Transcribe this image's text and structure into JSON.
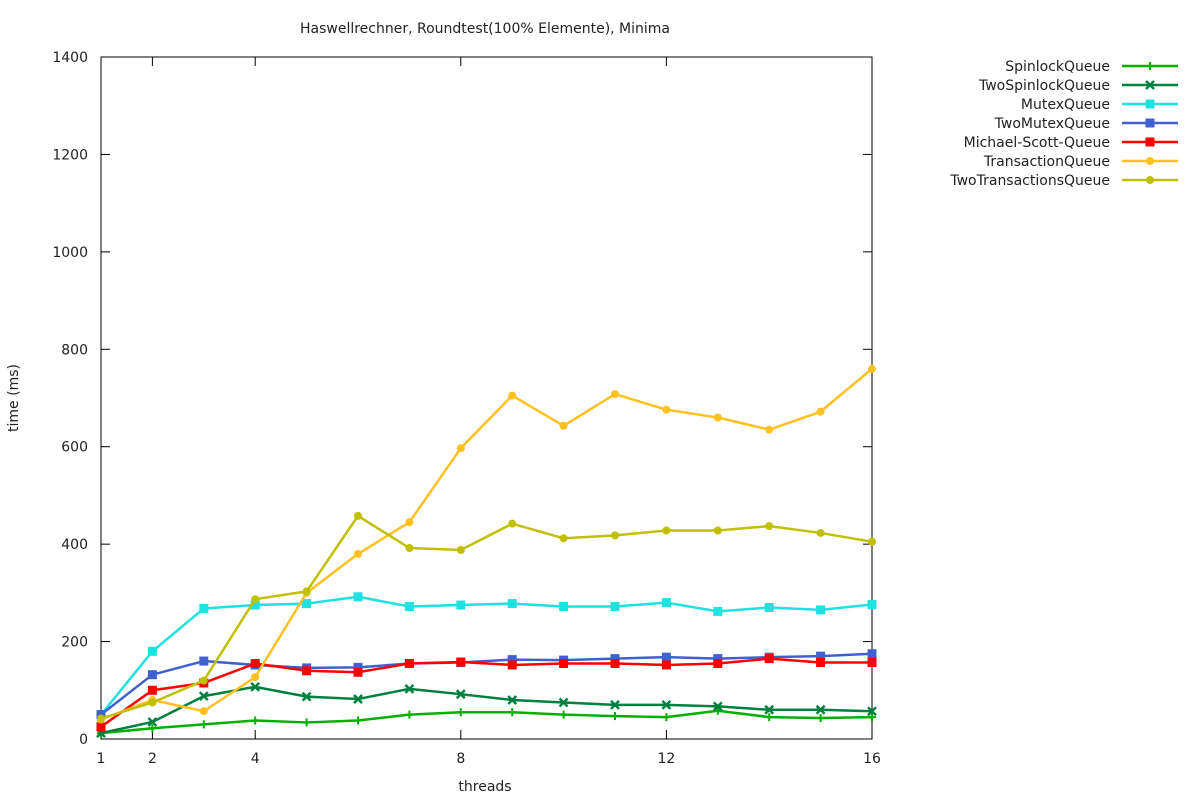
{
  "chart_data": {
    "type": "line",
    "title": "Haswellrechner, Roundtest(100% Elemente), Minima",
    "xlabel": "threads",
    "ylabel": "time (ms)",
    "xlim": [
      1,
      16
    ],
    "ylim": [
      0,
      1400
    ],
    "x_ticks": [
      1,
      2,
      4,
      8,
      12,
      16
    ],
    "y_ticks": [
      0,
      200,
      400,
      600,
      800,
      1000,
      1200,
      1400
    ],
    "grid": false,
    "legend_position": "outside-top-right",
    "x": [
      1,
      2,
      3,
      4,
      5,
      6,
      7,
      8,
      9,
      10,
      11,
      12,
      13,
      14,
      15,
      16
    ],
    "series": [
      {
        "name": "SpinlockQueue",
        "color": "#00b000",
        "marker": "plus",
        "values": [
          12,
          22,
          30,
          38,
          34,
          38,
          50,
          55,
          55,
          50,
          47,
          45,
          58,
          45,
          43,
          45
        ]
      },
      {
        "name": "TwoSpinlockQueue",
        "color": "#008040",
        "marker": "cross",
        "values": [
          12,
          35,
          88,
          107,
          87,
          82,
          103,
          92,
          80,
          75,
          70,
          70,
          67,
          60,
          60,
          57
        ]
      },
      {
        "name": "MutexQueue",
        "color": "#20e0e0",
        "marker": "square",
        "values": [
          50,
          180,
          268,
          275,
          278,
          292,
          272,
          275,
          278,
          272,
          272,
          280,
          262,
          270,
          265,
          276
        ]
      },
      {
        "name": "TwoMutexQueue",
        "color": "#4060d0",
        "marker": "square",
        "values": [
          50,
          132,
          160,
          152,
          146,
          147,
          155,
          157,
          163,
          162,
          165,
          168,
          165,
          168,
          170,
          175
        ]
      },
      {
        "name": "Michael-Scott-Queue",
        "color": "#ff0000",
        "marker": "square",
        "values": [
          25,
          100,
          115,
          155,
          140,
          137,
          155,
          158,
          152,
          155,
          155,
          152,
          155,
          165,
          157,
          157
        ]
      },
      {
        "name": "TransactionQueue",
        "color": "#ffc020",
        "marker": "circle",
        "values": [
          40,
          80,
          57,
          127,
          300,
          380,
          445,
          597,
          705,
          643,
          708,
          676,
          660,
          635,
          672,
          760
        ]
      },
      {
        "name": "TwoTransactionsQueue",
        "color": "#c0c000",
        "marker": "circle",
        "values": [
          42,
          75,
          120,
          287,
          303,
          458,
          392,
          388,
          442,
          412,
          418,
          428,
          428,
          437,
          423,
          405
        ]
      }
    ]
  }
}
